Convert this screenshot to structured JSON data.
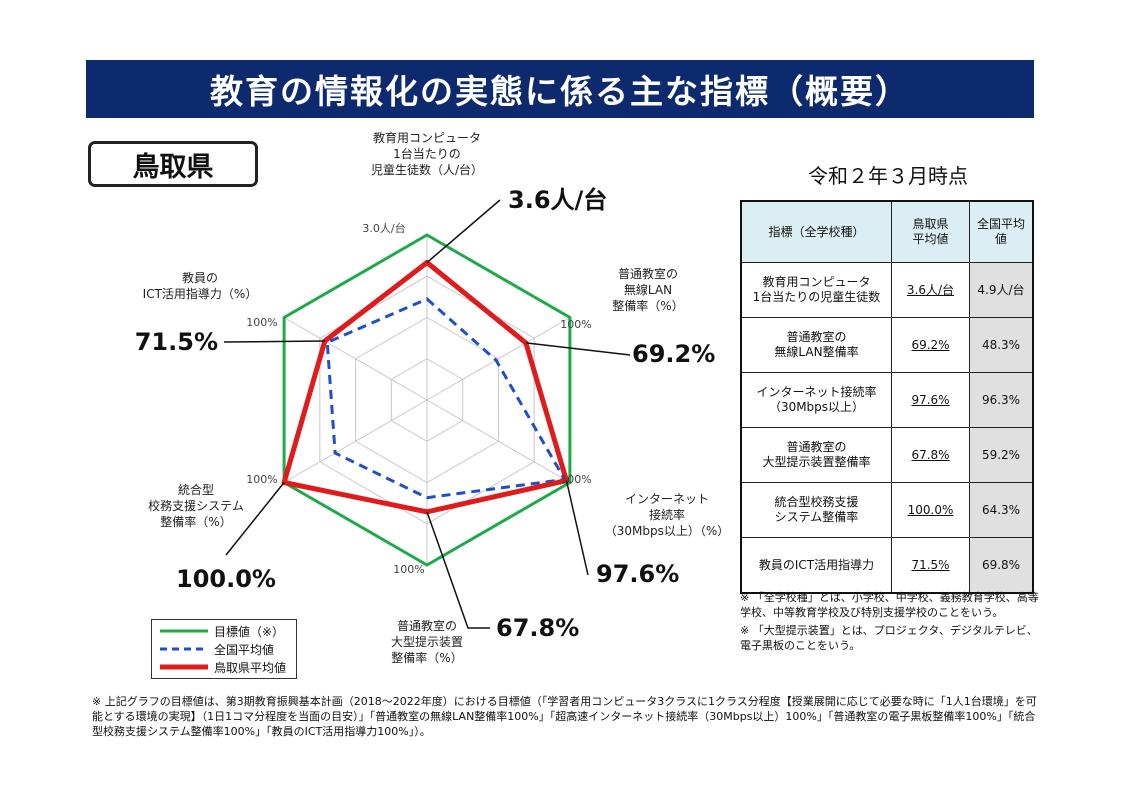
{
  "title": "教育の情報化の実態に係る主な指標（概要）",
  "prefecture": "鳥取県",
  "date": "令和２年３月時点",
  "chart_data": {
    "type": "radar",
    "axes": [
      {
        "label": [
          "教育用コンピュータ",
          "1台当たりの",
          "児童生徒数（人/台）"
        ],
        "tick": "3.0人/台",
        "tottori": 3.6,
        "national": 4.9,
        "target": 3.0,
        "callout": "3.6人/台"
      },
      {
        "label": [
          "普通教室の",
          "無線LAN",
          "整備率（%）"
        ],
        "tick": "100%",
        "tottori": 69.2,
        "national": 48.3,
        "target": 100,
        "callout": "69.2%"
      },
      {
        "label": [
          "インターネット",
          "接続率",
          "（30Mbps以上）（%）"
        ],
        "tick": "100%",
        "tottori": 97.6,
        "national": 96.3,
        "target": 100,
        "callout": "97.6%"
      },
      {
        "label": [
          "普通教室の",
          "大型提示装置",
          "整備率（%）"
        ],
        "tick": "100%",
        "tottori": 67.8,
        "national": 59.2,
        "target": 100,
        "callout": "67.8%"
      },
      {
        "label": [
          "統合型",
          "校務支援システム",
          "整備率（%）"
        ],
        "tick": "100%",
        "tottori": 100.0,
        "national": 64.3,
        "target": 100,
        "callout": "100.0%"
      },
      {
        "label": [
          "教員の",
          "ICT活用指導力（%）"
        ],
        "tick": "100%",
        "tottori": 71.5,
        "national": 69.8,
        "target": 100,
        "callout": "71.5%"
      }
    ],
    "series": [
      {
        "name": "目標値（※）",
        "color": "#1faa4a",
        "style": "solid"
      },
      {
        "name": "全国平均値",
        "color": "#1f4fc6",
        "style": "dashed"
      },
      {
        "name": "鳥取県平均値",
        "color": "#e01b1b",
        "style": "solid"
      }
    ],
    "grid_levels": 4
  },
  "table": {
    "headers": [
      "指標（全学校種）",
      "鳥取県\n平均値",
      "全国平均値"
    ],
    "rows": [
      {
        "label": "教育用コンピュータ\n1台当たりの児童生徒数",
        "pref": "3.6人/台",
        "nat": "4.9人/台"
      },
      {
        "label": "普通教室の\n無線LAN整備率",
        "pref": "69.2%",
        "nat": "48.3%"
      },
      {
        "label": "インターネット接続率\n（30Mbps以上）",
        "pref": "97.6%",
        "nat": "96.3%"
      },
      {
        "label": "普通教室の\n大型提示装置整備率",
        "pref": "67.8%",
        "nat": "59.2%"
      },
      {
        "label": "統合型校務支援\nシステム整備率",
        "pref": "100.0%",
        "nat": "64.3%"
      },
      {
        "label": "教員のICT活用指導力",
        "pref": "71.5%",
        "nat": "69.8%"
      }
    ]
  },
  "notes": [
    "※ 「全学校種」とは、小学校、中学校、義務教育学校、高等学校、中等教育学校及び特別支援学校のことをいう。",
    "※ 「大型提示装置」とは、プロジェクタ、デジタルテレビ、電子黒板のことをいう。"
  ],
  "footnote": "※ 上記グラフの目標値は、第3期教育振興基本計画（2018～2022年度）における目標値（「学習者用コンピュータ3クラスに1クラス分程度【授業展開に応じて必要な時に「1人1台環境」を可能とする環境の実現】（1日1コマ分程度を当面の目安）」「普通教室の無線LAN整備率100%」「超高速インターネット接続率（30Mbps以上）100%」「普通教室の電子黒板整備率100%」「統合型校務支援システム整備率100%」「教員のICT活用指導力100%」）。"
}
